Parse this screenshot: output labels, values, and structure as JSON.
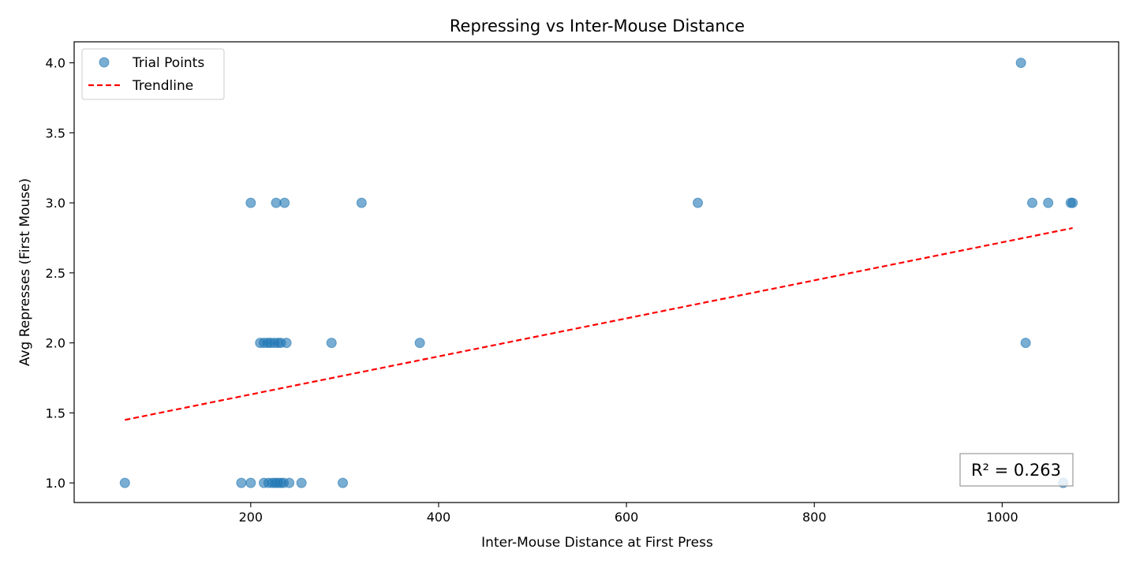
{
  "chart_data": {
    "type": "scatter",
    "title": "Repressing vs Inter-Mouse Distance",
    "xlabel": "Inter-Mouse Distance at First Press",
    "ylabel": "Avg Represses (First Mouse)",
    "xlim": [
      12,
      1124
    ],
    "ylim": [
      0.86,
      4.15
    ],
    "x_ticks": [
      200,
      400,
      600,
      800,
      1000
    ],
    "x_tick_labels": [
      "200",
      "400",
      "600",
      "800",
      "1000"
    ],
    "y_ticks": [
      1.0,
      1.5,
      2.0,
      2.5,
      3.0,
      3.5,
      4.0
    ],
    "y_tick_labels": [
      "1.0",
      "1.5",
      "2.0",
      "2.5",
      "3.0",
      "3.5",
      "4.0"
    ],
    "grid": false,
    "legend_position": "top-left",
    "series": [
      {
        "name": "Trial Points",
        "kind": "scatter",
        "color": "#1f77b4",
        "points": [
          {
            "x": 1020,
            "y": 4.0
          },
          {
            "x": 200,
            "y": 3.0
          },
          {
            "x": 227,
            "y": 3.0
          },
          {
            "x": 236,
            "y": 3.0
          },
          {
            "x": 318,
            "y": 3.0
          },
          {
            "x": 676,
            "y": 3.0
          },
          {
            "x": 1032,
            "y": 3.0
          },
          {
            "x": 1049,
            "y": 3.0
          },
          {
            "x": 1073,
            "y": 3.0
          },
          {
            "x": 1075,
            "y": 3.0
          },
          {
            "x": 210,
            "y": 2.0
          },
          {
            "x": 214,
            "y": 2.0
          },
          {
            "x": 218,
            "y": 2.0
          },
          {
            "x": 221,
            "y": 2.0
          },
          {
            "x": 225,
            "y": 2.0
          },
          {
            "x": 229,
            "y": 2.0
          },
          {
            "x": 232,
            "y": 2.0
          },
          {
            "x": 238,
            "y": 2.0
          },
          {
            "x": 286,
            "y": 2.0
          },
          {
            "x": 380,
            "y": 2.0
          },
          {
            "x": 1025,
            "y": 2.0
          },
          {
            "x": 66,
            "y": 1.0
          },
          {
            "x": 190,
            "y": 1.0
          },
          {
            "x": 200,
            "y": 1.0
          },
          {
            "x": 214,
            "y": 1.0
          },
          {
            "x": 219,
            "y": 1.0
          },
          {
            "x": 223,
            "y": 1.0
          },
          {
            "x": 226,
            "y": 1.0
          },
          {
            "x": 229,
            "y": 1.0
          },
          {
            "x": 232,
            "y": 1.0
          },
          {
            "x": 235,
            "y": 1.0
          },
          {
            "x": 241,
            "y": 1.0
          },
          {
            "x": 254,
            "y": 1.0
          },
          {
            "x": 298,
            "y": 1.0
          },
          {
            "x": 1065,
            "y": 1.0
          }
        ]
      },
      {
        "name": "Trendline",
        "kind": "line",
        "style": "dashed",
        "color": "#ff0000",
        "points": [
          {
            "x": 66,
            "y": 1.45
          },
          {
            "x": 1075,
            "y": 2.82
          }
        ]
      }
    ],
    "annotations": [
      {
        "text": "R² = 0.263",
        "position": "bottom-right",
        "boxed": true
      }
    ]
  }
}
